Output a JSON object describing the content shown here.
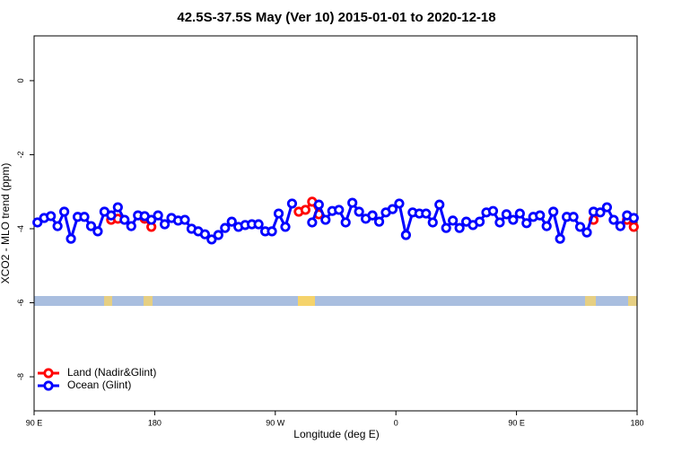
{
  "chart_data": {
    "type": "line",
    "title": "42.5S-37.5S May (Ver 10)   2015-01-01 to 2020-12-18",
    "x_label": "Longitude (deg E)",
    "y_label": "XCO2 - MLO trend (ppm)",
    "xlim": [
      90,
      540
    ],
    "ylim": [
      -8.92,
      1.21
    ],
    "xticks": [
      {
        "value": 90,
        "label": "90 E"
      },
      {
        "value": 180,
        "label": "180"
      },
      {
        "value": 270,
        "label": "90 W"
      },
      {
        "value": 360,
        "label": "0"
      },
      {
        "value": 450,
        "label": "90 E"
      },
      {
        "value": 540,
        "label": "180"
      }
    ],
    "yticks": [
      0,
      -2,
      -4,
      -6,
      -8
    ],
    "legend": "bottomleft",
    "x": [
      92.5,
      97.5,
      102.5,
      107.5,
      112.5,
      117.5,
      122.5,
      127.5,
      132.5,
      137.5,
      142.5,
      147.5,
      152.5,
      157.5,
      162.5,
      167.5,
      172.5,
      177.5,
      182.5,
      187.5,
      192.5,
      197.5,
      202.5,
      207.5,
      212.5,
      217.5,
      222.5,
      227.5,
      232.5,
      237.5,
      242.5,
      247.5,
      252.5,
      257.5,
      262.5,
      267.5,
      272.5,
      277.5,
      282.5,
      287.5,
      292.5,
      297.5,
      302.5,
      307.5,
      312.5,
      317.5,
      322.5,
      327.5,
      332.5,
      337.5,
      342.5,
      347.5,
      352.5,
      357.5,
      362.5,
      367.5,
      372.5,
      377.5,
      382.5,
      387.5,
      392.5,
      397.5,
      402.5,
      407.5,
      412.5,
      417.5,
      422.5,
      427.5,
      432.5,
      437.5,
      442.5,
      447.5,
      452.5,
      457.5,
      462.5,
      467.5,
      472.5,
      477.5,
      482.5,
      487.5,
      492.5,
      497.5,
      502.5,
      507.5,
      512.5,
      517.5,
      522.5,
      527.5,
      532.5,
      537.5
    ],
    "series": [
      {
        "name": "Land (Nadir&Glint)",
        "color": "#ff0000",
        "values": [
          null,
          null,
          null,
          null,
          null,
          null,
          null,
          null,
          null,
          null,
          null,
          -3.76,
          -3.73,
          null,
          null,
          null,
          -3.73,
          -3.95,
          null,
          null,
          null,
          null,
          null,
          null,
          null,
          null,
          null,
          null,
          null,
          null,
          null,
          null,
          null,
          null,
          null,
          null,
          null,
          null,
          null,
          -3.54,
          -3.49,
          -3.27,
          -3.61,
          null,
          null,
          null,
          null,
          null,
          null,
          null,
          null,
          null,
          null,
          null,
          null,
          null,
          null,
          null,
          null,
          null,
          null,
          null,
          null,
          null,
          null,
          null,
          null,
          null,
          null,
          null,
          null,
          null,
          null,
          null,
          null,
          null,
          null,
          null,
          null,
          null,
          null,
          null,
          null,
          -3.76,
          null,
          null,
          null,
          null,
          -3.76,
          -3.95
        ]
      },
      {
        "name": "Ocean (Glint)",
        "color": "#0000ff",
        "values": [
          -3.83,
          -3.71,
          -3.66,
          -3.93,
          -3.54,
          -4.27,
          -3.68,
          -3.68,
          -3.93,
          -4.07,
          -3.54,
          -3.64,
          -3.42,
          -3.76,
          -3.93,
          -3.64,
          -3.66,
          -3.76,
          -3.64,
          -3.88,
          -3.71,
          -3.78,
          -3.76,
          -4.0,
          -4.07,
          -4.15,
          -4.29,
          -4.17,
          -3.98,
          -3.81,
          -3.95,
          -3.9,
          -3.88,
          -3.88,
          -4.07,
          -4.07,
          -3.59,
          -3.95,
          -3.32,
          null,
          null,
          -3.83,
          -3.35,
          -3.76,
          -3.52,
          -3.49,
          -3.83,
          -3.3,
          -3.54,
          -3.73,
          -3.64,
          -3.81,
          -3.56,
          -3.47,
          -3.32,
          -4.17,
          -3.56,
          -3.59,
          -3.59,
          -3.83,
          -3.35,
          -3.98,
          -3.78,
          -3.98,
          -3.81,
          -3.9,
          -3.81,
          -3.56,
          -3.52,
          -3.83,
          -3.61,
          -3.76,
          -3.59,
          -3.85,
          -3.68,
          -3.64,
          -3.93,
          -3.54,
          -4.27,
          -3.68,
          -3.68,
          -3.95,
          -4.1,
          -3.54,
          -3.56,
          -3.42,
          -3.76,
          -3.93,
          -3.64,
          -3.71
        ]
      }
    ]
  }
}
